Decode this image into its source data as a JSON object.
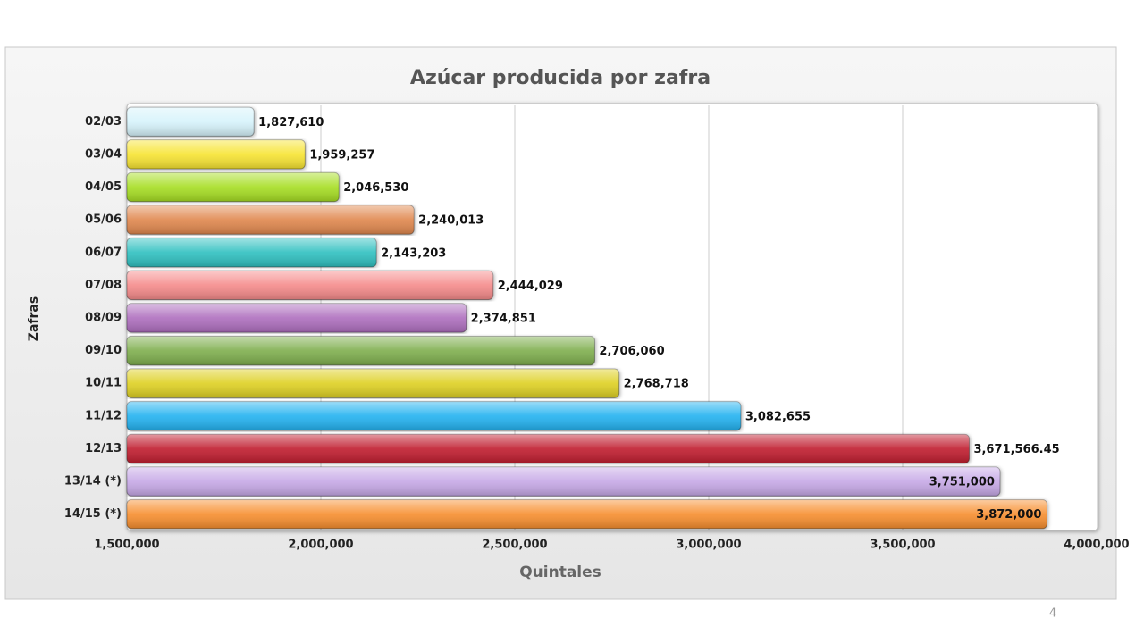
{
  "chart_data": {
    "type": "bar",
    "orientation": "horizontal",
    "title": "Azúcar producida por zafra",
    "x_label": "Quintales",
    "y_label": "Zafras",
    "categories": [
      "02/03",
      "03/04",
      "04/05",
      "05/06",
      "06/07",
      "07/08",
      "08/09",
      "09/10",
      "10/11",
      "11/12",
      "12/13",
      "13/14 (*)",
      "14/15 (*)"
    ],
    "values": [
      1827610,
      1959257,
      2046530,
      2240013,
      2143203,
      2444029,
      2374851,
      2706060,
      2768718,
      3082655,
      3671566.45,
      3751000,
      3872000
    ],
    "value_labels": [
      "1,827,610",
      "1,959,257",
      "2,046,530",
      "2,240,013",
      "2,143,203",
      "2,444,029",
      "2,374,851",
      "2,706,060",
      "2,768,718",
      "3,082,655",
      "3,671,566.45",
      "3,751,000",
      "3,872,000"
    ],
    "colors": [
      "#d6f3fb",
      "#f7e432",
      "#a6de22",
      "#e0874e",
      "#2fc0c0",
      "#f58a8a",
      "#ae6ebe",
      "#7eae4e",
      "#ded022",
      "#22b2f0",
      "#c01e2e",
      "#c6a8e6",
      "#f78e2e"
    ],
    "xlim": [
      1500000,
      4000000
    ],
    "xticks": [
      {
        "value": 1500000,
        "label": "1,500,000"
      },
      {
        "value": 2000000,
        "label": "2,000,000"
      },
      {
        "value": 2500000,
        "label": "2,500,000"
      },
      {
        "value": 3000000,
        "label": "3,000,000"
      },
      {
        "value": 3500000,
        "label": "3,500,000"
      },
      {
        "value": 4000000,
        "label": "4,000,000"
      }
    ],
    "grid": true
  },
  "page_number": "4"
}
